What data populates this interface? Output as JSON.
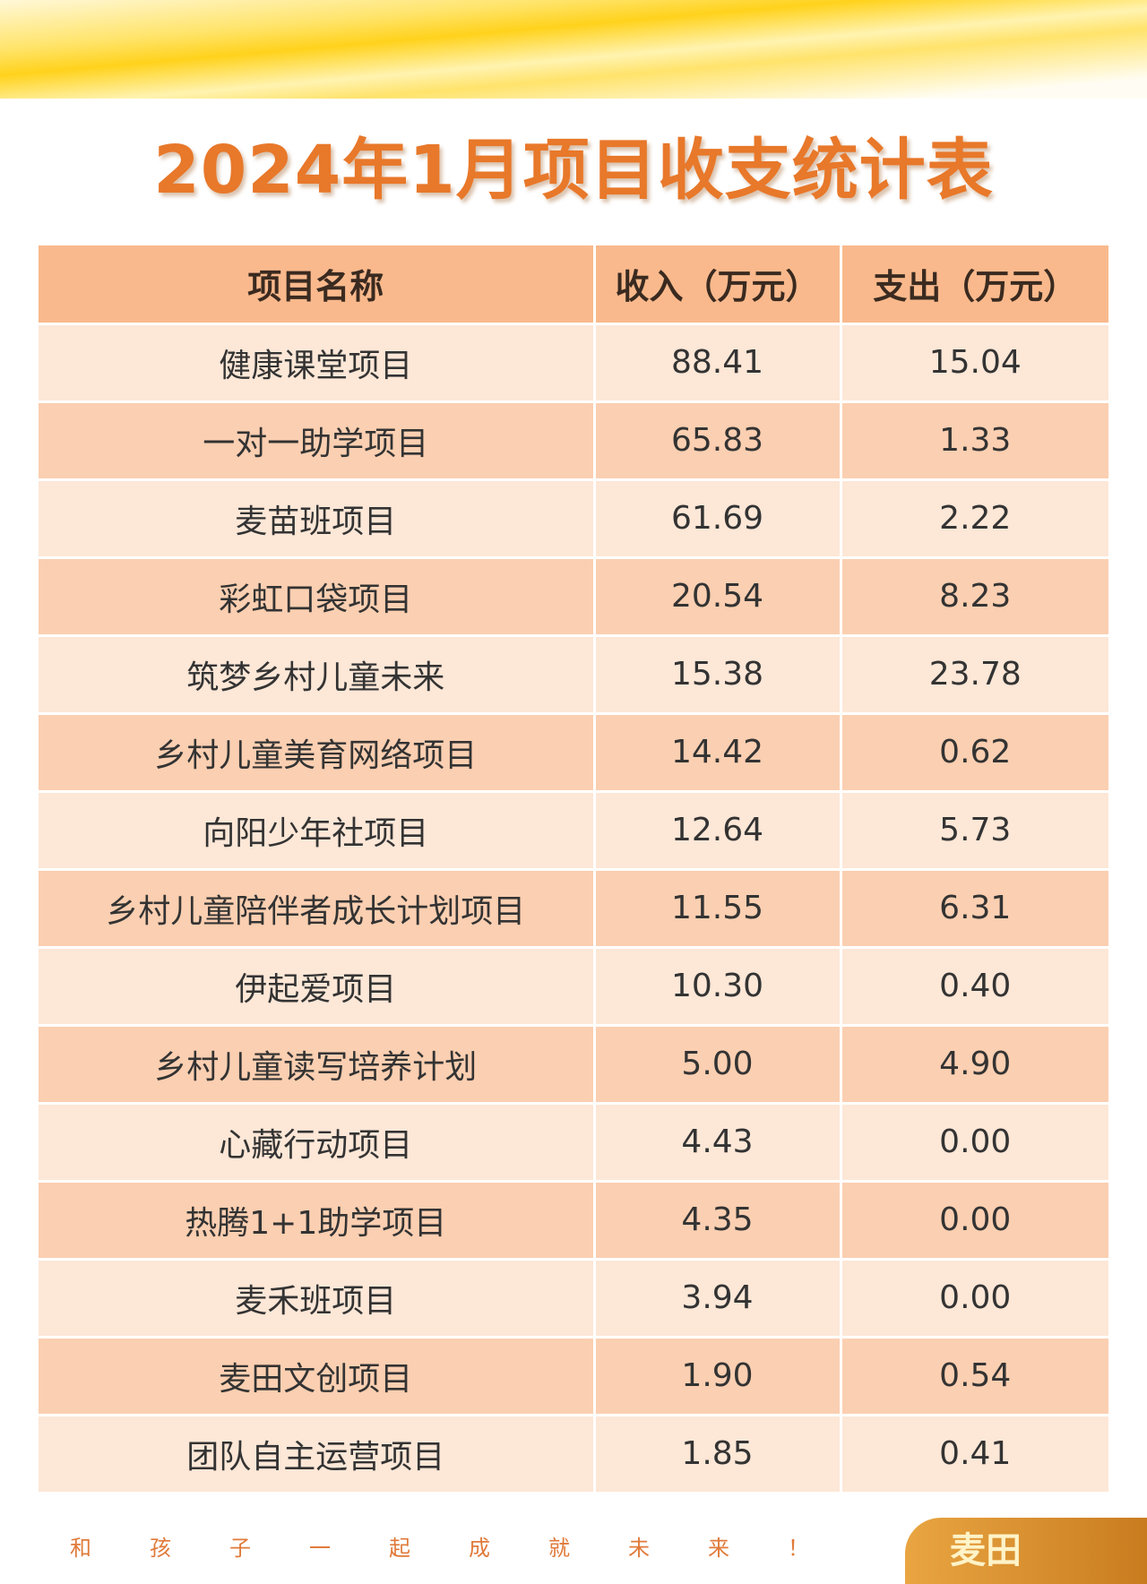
{
  "header": {
    "title": "2024年1月项目收支统计表"
  },
  "table": {
    "columns": [
      "项目名称",
      "收入（万元）",
      "支出（万元）"
    ],
    "rows": [
      [
        "健康课堂项目",
        "88.41",
        "15.04"
      ],
      [
        "一对一助学项目",
        "65.83",
        "1.33"
      ],
      [
        "麦苗班项目",
        "61.69",
        "2.22"
      ],
      [
        "彩虹口袋项目",
        "20.54",
        "8.23"
      ],
      [
        "筑梦乡村儿童未来",
        "15.38",
        "23.78"
      ],
      [
        "乡村儿童美育网络项目",
        "14.42",
        "0.62"
      ],
      [
        "向阳少年社项目",
        "12.64",
        "5.73"
      ],
      [
        "乡村儿童陪伴者成长计划项目",
        "11.55",
        "6.31"
      ],
      [
        "伊起爱项目",
        "10.30",
        "0.40"
      ],
      [
        "乡村儿童读写培养计划",
        "5.00",
        "4.90"
      ],
      [
        "心藏行动项目",
        "4.43",
        "0.00"
      ],
      [
        "热腾1+1助学项目",
        "4.35",
        "0.00"
      ],
      [
        "麦禾班项目",
        "3.94",
        "0.00"
      ],
      [
        "麦田文创项目",
        "1.90",
        "0.54"
      ],
      [
        "团队自主运营项目",
        "1.85",
        "0.41"
      ]
    ]
  },
  "footer": {
    "slogan": "和孩子一起成就未来！",
    "logo": "麦田"
  }
}
